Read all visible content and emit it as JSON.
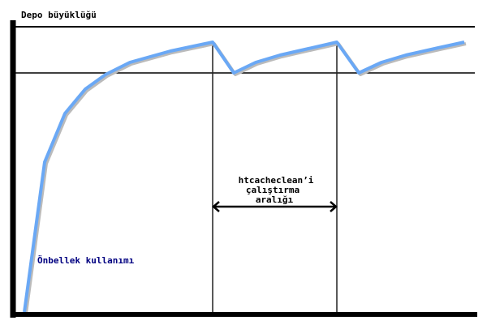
{
  "labels": {
    "y_axis": "Depo büyüklüğü",
    "interval_line1": "htcacheclean’i",
    "interval_line2": "çalıştırma",
    "interval_line3": "aralığı",
    "curve": "Önbellek kullanımı"
  },
  "colors": {
    "curve": "#6aa8f5",
    "axis": "#000000",
    "curve_label": "#000080"
  }
}
